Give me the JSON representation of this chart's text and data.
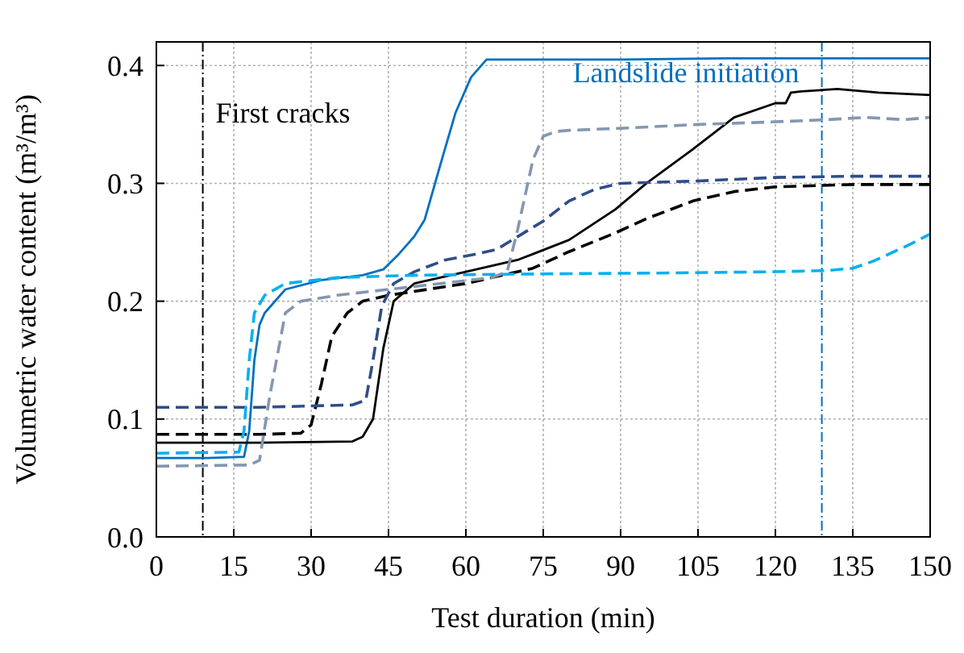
{
  "chart_data": {
    "type": "line",
    "xlabel": "Test duration (min)",
    "ylabel": "Volumetric water content (m³/m³)",
    "xlim": [
      0,
      150
    ],
    "xticks": [
      0,
      15,
      30,
      45,
      60,
      75,
      90,
      105,
      120,
      135,
      150
    ],
    "ylim": [
      0,
      0.42
    ],
    "yticks": [
      {
        "value": 0,
        "label": "0.0"
      },
      {
        "value": 0.1,
        "label": "0.1"
      },
      {
        "value": 0.2,
        "label": "0.2"
      },
      {
        "value": 0.3,
        "label": "0.3"
      },
      {
        "value": 0.4,
        "label": "0.4"
      }
    ],
    "grid": true,
    "marker": "none",
    "ref_lines": [
      {
        "axis": "x",
        "value": 9,
        "label": "First cracks",
        "color": "#000000",
        "line_style": "dashed"
      },
      {
        "axis": "x",
        "value": 129,
        "label": "Landslide initiation",
        "color": "#0070c0",
        "line_style": "dashed"
      }
    ],
    "series": [
      {
        "color": "#0070c0",
        "line_style": "solid",
        "x": [
          0,
          10,
          17,
          18,
          19,
          20,
          21,
          25,
          32,
          40,
          44,
          47,
          50,
          52,
          55,
          58,
          61,
          64,
          70,
          90,
          110,
          130,
          150
        ],
        "values": [
          0.067,
          0.067,
          0.068,
          0.09,
          0.15,
          0.18,
          0.19,
          0.21,
          0.218,
          0.222,
          0.227,
          0.24,
          0.255,
          0.269,
          0.315,
          0.36,
          0.39,
          0.405,
          0.405,
          0.405,
          0.406,
          0.406,
          0.406
        ]
      },
      {
        "color": "#000000",
        "line_style": "solid",
        "x": [
          0,
          20,
          38,
          40,
          42,
          44,
          46,
          50,
          60,
          70,
          73,
          80,
          89,
          95,
          104,
          112,
          120,
          122,
          123,
          125,
          132,
          140,
          150
        ],
        "values": [
          0.08,
          0.08,
          0.081,
          0.085,
          0.1,
          0.16,
          0.2,
          0.215,
          0.225,
          0.235,
          0.24,
          0.252,
          0.278,
          0.3,
          0.329,
          0.356,
          0.368,
          0.368,
          0.377,
          0.378,
          0.38,
          0.377,
          0.375
        ]
      },
      {
        "color": "#000000",
        "line_style": "dashed",
        "x": [
          0,
          20,
          28,
          30,
          32,
          34,
          37,
          40,
          45,
          60,
          73,
          80,
          89,
          95,
          104,
          112,
          120,
          135,
          150
        ],
        "values": [
          0.087,
          0.087,
          0.088,
          0.095,
          0.13,
          0.17,
          0.19,
          0.2,
          0.205,
          0.215,
          0.228,
          0.242,
          0.258,
          0.27,
          0.285,
          0.293,
          0.297,
          0.299,
          0.299
        ]
      },
      {
        "color": "#2f4d8a",
        "line_style": "dashed",
        "x": [
          0,
          20,
          38,
          40.6,
          42,
          43.7,
          46,
          50,
          56,
          62,
          66,
          69,
          72,
          75,
          80,
          85,
          90,
          105,
          120,
          135,
          150
        ],
        "values": [
          0.11,
          0.11,
          0.112,
          0.116,
          0.15,
          0.196,
          0.215,
          0.225,
          0.235,
          0.24,
          0.244,
          0.252,
          0.26,
          0.268,
          0.285,
          0.295,
          0.3,
          0.302,
          0.305,
          0.306,
          0.306
        ]
      },
      {
        "color": "#8497b0",
        "line_style": "dashed",
        "x": [
          0,
          18,
          20,
          22,
          25,
          28,
          35,
          45,
          55,
          65,
          68,
          70,
          73,
          75,
          77.5,
          80,
          91.5,
          105,
          118.7,
          130,
          137.5,
          145,
          150
        ],
        "values": [
          0.06,
          0.061,
          0.065,
          0.12,
          0.19,
          0.2,
          0.205,
          0.21,
          0.215,
          0.22,
          0.225,
          0.26,
          0.32,
          0.34,
          0.344,
          0.345,
          0.347,
          0.35,
          0.352,
          0.354,
          0.356,
          0.354,
          0.356
        ]
      },
      {
        "color": "#00b0f0",
        "line_style": "dashed",
        "x": [
          0,
          16,
          17,
          18,
          19,
          21,
          25,
          35,
          50,
          70,
          100,
          120,
          130,
          135,
          139,
          142,
          146,
          150
        ],
        "values": [
          0.071,
          0.072,
          0.09,
          0.15,
          0.19,
          0.205,
          0.215,
          0.22,
          0.222,
          0.223,
          0.224,
          0.225,
          0.226,
          0.228,
          0.234,
          0.24,
          0.248,
          0.257
        ]
      }
    ]
  }
}
